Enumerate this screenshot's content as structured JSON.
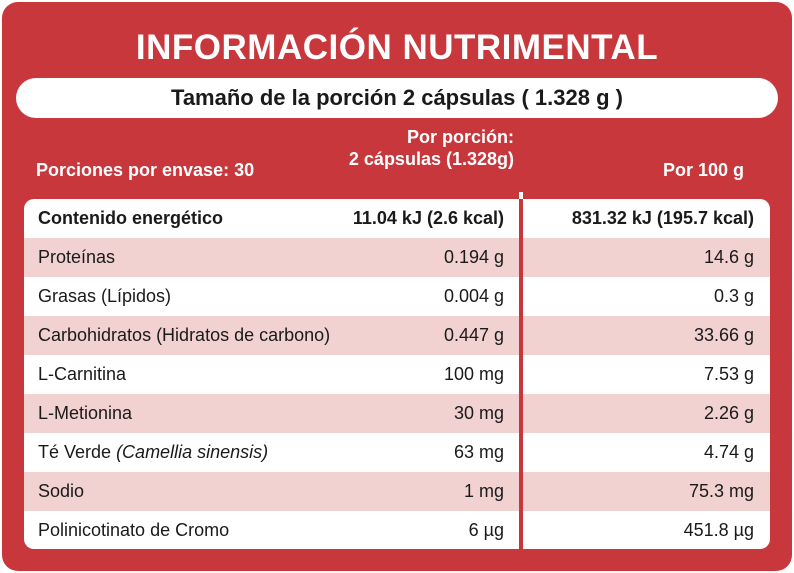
{
  "title": "INFORMACIÓN NUTRIMENTAL",
  "serving_size": "Tamaño de la porción 2 cápsulas ( 1.328 g )",
  "header": {
    "servings_per_container": "Porciones por envase: 30",
    "per_serving_line1": "Por porción:",
    "per_serving_line2": "2 cápsulas (1.328g)",
    "per_100g": "Por 100 g"
  },
  "rows": [
    {
      "name": "Contenido energético",
      "per_serving": "11.04 kJ (2.6 kcal)",
      "per_100g": "831.32 kJ (195.7 kcal)"
    },
    {
      "name": "Proteínas",
      "per_serving": "0.194 g",
      "per_100g": "14.6 g"
    },
    {
      "name": "Grasas (Lípidos)",
      "per_serving": "0.004 g",
      "per_100g": "0.3 g"
    },
    {
      "name": "Carbohidratos (Hidratos de carbono)",
      "per_serving": "0.447 g",
      "per_100g": "33.66 g"
    },
    {
      "name": "L-Carnitina",
      "per_serving": "100 mg",
      "per_100g": "7.53 g"
    },
    {
      "name": "L-Metionina",
      "per_serving": "30 mg",
      "per_100g": "2.26 g"
    },
    {
      "name": "Té Verde",
      "name_italic": "(Camellia sinensis)",
      "per_serving": "63 mg",
      "per_100g": "4.74 g"
    },
    {
      "name": "Sodio",
      "per_serving": "1 mg",
      "per_100g": "75.3 mg"
    },
    {
      "name": "Polinicotinato de Cromo",
      "per_serving": "6 µg",
      "per_100g": "451.8 µg"
    }
  ],
  "colors": {
    "panel_red": "#c8373c",
    "row_shade": "#f1d2d0"
  }
}
